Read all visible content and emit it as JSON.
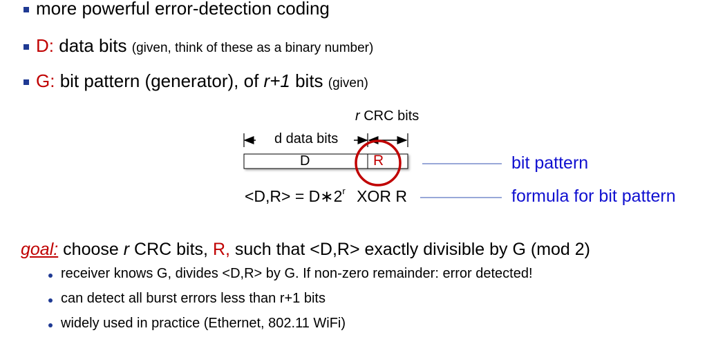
{
  "bullets": [
    {
      "text": "more powerful error-detection coding"
    },
    {
      "label": "D:",
      "main": "data bits",
      "note": "(given, think of these as a binary number)"
    },
    {
      "label": "G:",
      "main_before": "bit pattern (generator), of",
      "main_italic": "r+1",
      "main_after": "bits",
      "note": "(given)"
    }
  ],
  "diagram": {
    "r_label_italic": "r",
    "r_label_rest": "CRC bits",
    "d_span_label": "d data bits",
    "box_d": "D",
    "box_r": "R",
    "formula_left": "<D,R> = D∗2",
    "formula_exp": "r",
    "formula_right": "XOR  R",
    "callout_bit_pattern": "bit pattern",
    "callout_formula": "formula for bit pattern"
  },
  "goal": {
    "label": "goal:",
    "t1": "choose",
    "t_r": "r",
    "t2": "CRC bits,",
    "t_R": "R,",
    "t3": "such that <D,R> exactly divisible by G (mod 2)"
  },
  "sub_bullets": [
    "receiver knows G, divides <D,R> by G.  If non-zero remainder: error detected!",
    "can detect all burst errors less than r+1 bits",
    "widely used in practice (Ethernet, 802.11 WiFi)"
  ],
  "colors": {
    "accent_red": "#c00000",
    "accent_blue": "#1010d0",
    "bullet": "#1f3a93"
  }
}
